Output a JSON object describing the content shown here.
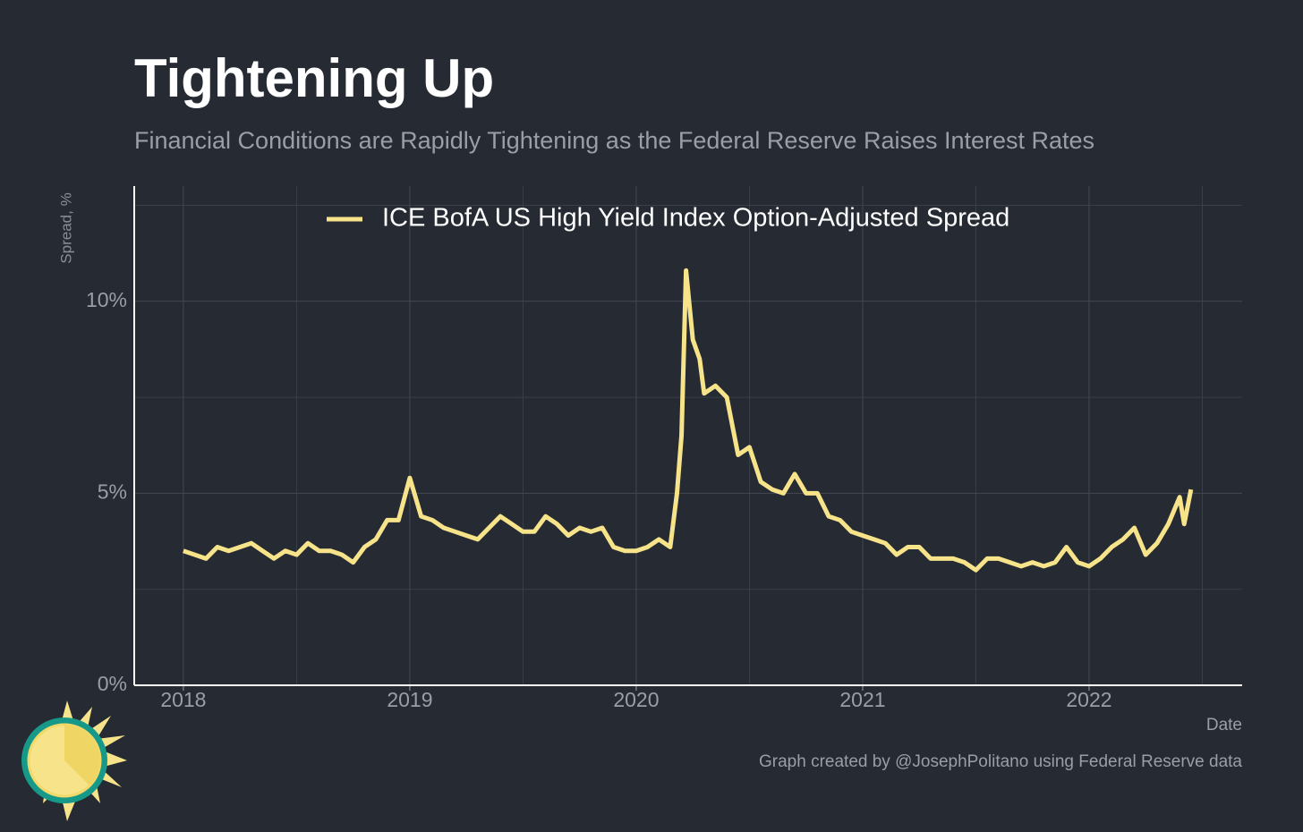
{
  "chart_data": {
    "type": "line",
    "title": "Tightening Up",
    "subtitle": "Financial Conditions are Rapidly Tightening as the Federal Reserve Raises Interest Rates",
    "y_label": "Spread, %",
    "x_label": "Date",
    "caption": "Graph created by @JosephPolitano using Federal Reserve data",
    "x": [
      2018.0,
      2018.05,
      2018.1,
      2018.15,
      2018.2,
      2018.25,
      2018.3,
      2018.35,
      2018.4,
      2018.45,
      2018.5,
      2018.55,
      2018.6,
      2018.65,
      2018.7,
      2018.75,
      2018.8,
      2018.85,
      2018.9,
      2018.95,
      2019.0,
      2019.05,
      2019.1,
      2019.15,
      2019.2,
      2019.25,
      2019.3,
      2019.35,
      2019.4,
      2019.45,
      2019.5,
      2019.55,
      2019.6,
      2019.65,
      2019.7,
      2019.75,
      2019.8,
      2019.85,
      2019.9,
      2019.95,
      2020.0,
      2020.05,
      2020.1,
      2020.15,
      2020.18,
      2020.2,
      2020.22,
      2020.25,
      2020.28,
      2020.3,
      2020.35,
      2020.4,
      2020.45,
      2020.5,
      2020.55,
      2020.6,
      2020.65,
      2020.7,
      2020.75,
      2020.8,
      2020.85,
      2020.9,
      2020.95,
      2021.0,
      2021.05,
      2021.1,
      2021.15,
      2021.2,
      2021.25,
      2021.3,
      2021.35,
      2021.4,
      2021.45,
      2021.5,
      2021.55,
      2021.6,
      2021.65,
      2021.7,
      2021.75,
      2021.8,
      2021.85,
      2021.9,
      2021.95,
      2022.0,
      2022.05,
      2022.1,
      2022.15,
      2022.2,
      2022.25,
      2022.3,
      2022.35,
      2022.4,
      2022.42,
      2022.45
    ],
    "series": [
      {
        "name": "ICE BofA US High Yield Index Option-Adjusted Spread",
        "color": "#f6e38a",
        "values": [
          3.5,
          3.4,
          3.3,
          3.6,
          3.5,
          3.6,
          3.7,
          3.5,
          3.3,
          3.5,
          3.4,
          3.7,
          3.5,
          3.5,
          3.4,
          3.2,
          3.6,
          3.8,
          4.3,
          4.3,
          5.4,
          4.4,
          4.3,
          4.1,
          4.0,
          3.9,
          3.8,
          4.1,
          4.4,
          4.2,
          4.0,
          4.0,
          4.4,
          4.2,
          3.9,
          4.1,
          4.0,
          4.1,
          3.6,
          3.5,
          3.5,
          3.6,
          3.8,
          3.6,
          5.0,
          6.5,
          10.8,
          9.0,
          8.5,
          7.6,
          7.8,
          7.5,
          6.0,
          6.2,
          5.3,
          5.1,
          5.0,
          5.5,
          5.0,
          5.0,
          4.4,
          4.3,
          4.0,
          3.9,
          3.8,
          3.7,
          3.4,
          3.6,
          3.6,
          3.3,
          3.3,
          3.3,
          3.2,
          3.0,
          3.3,
          3.3,
          3.2,
          3.1,
          3.2,
          3.1,
          3.2,
          3.6,
          3.2,
          3.1,
          3.3,
          3.6,
          3.8,
          4.1,
          3.4,
          3.7,
          4.2,
          4.9,
          4.2,
          5.1
        ]
      }
    ],
    "xlim": [
      2017.783,
      2022.676
    ],
    "xticks": [
      2018,
      2019,
      2020,
      2021,
      2022
    ],
    "minor_xticks": [
      2018.5,
      2019.5,
      2020.5,
      2021.5,
      2022.5
    ],
    "ylim": [
      0,
      13
    ],
    "yticks": [
      {
        "value": 0,
        "label": "0%"
      },
      {
        "value": 5,
        "label": "5%"
      },
      {
        "value": 10,
        "label": "10%"
      }
    ],
    "minor_yticks": [
      2.5,
      7.5,
      12.5
    ],
    "grid": true,
    "legend": "top"
  }
}
